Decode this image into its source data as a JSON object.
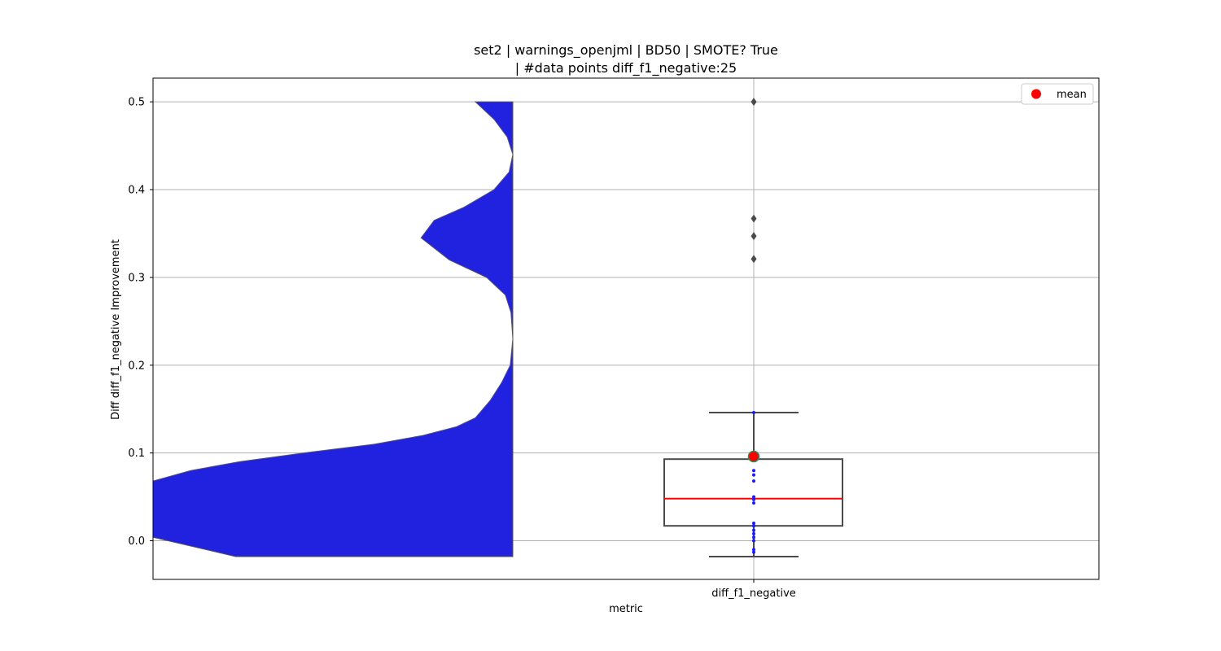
{
  "chart_data": {
    "type": "violin+box",
    "title_line1": "set2 | warnings_openjml | BD50 | SMOTE? True",
    "title_line2": "| #data points diff_f1_negative:25",
    "xlabel": "metric",
    "ylabel": "Diff diff_f1_negative Improvement",
    "categories": [
      "diff_f1_negative"
    ],
    "ylim": [
      -0.044,
      0.527
    ],
    "yticks": [
      0.0,
      0.1,
      0.2,
      0.3,
      0.4,
      0.5
    ],
    "ytick_labels": [
      "0.0",
      "0.1",
      "0.2",
      "0.3",
      "0.4",
      "0.5"
    ],
    "grid": true,
    "legend": {
      "placement": "top-right",
      "entries": [
        {
          "label": "mean",
          "color": "#ff0000"
        }
      ]
    },
    "box": {
      "whisker_low": -0.018,
      "q1": 0.017,
      "median": 0.048,
      "q3": 0.093,
      "whisker_high": 0.146,
      "mean": 0.096,
      "outliers": [
        0.321,
        0.347,
        0.367,
        0.5
      ]
    },
    "strip_points": [
      -0.013,
      -0.01,
      0.0,
      0.004,
      0.008,
      0.012,
      0.017,
      0.02,
      0.043,
      0.047,
      0.05,
      0.068,
      0.075,
      0.08,
      0.146
    ],
    "violin_density": [
      {
        "y": -0.018,
        "w": 0.74
      },
      {
        "y": 0.004,
        "w": 1.0
      },
      {
        "y": 0.02,
        "w": 1.0
      },
      {
        "y": 0.04,
        "w": 1.0
      },
      {
        "y": 0.068,
        "w": 1.0
      },
      {
        "y": 0.08,
        "w": 0.86
      },
      {
        "y": 0.09,
        "w": 0.73
      },
      {
        "y": 0.1,
        "w": 0.56
      },
      {
        "y": 0.11,
        "w": 0.37
      },
      {
        "y": 0.12,
        "w": 0.24
      },
      {
        "y": 0.13,
        "w": 0.15
      },
      {
        "y": 0.14,
        "w": 0.1
      },
      {
        "y": 0.16,
        "w": 0.06
      },
      {
        "y": 0.18,
        "w": 0.03
      },
      {
        "y": 0.2,
        "w": 0.007
      },
      {
        "y": 0.23,
        "w": 0.0
      },
      {
        "y": 0.26,
        "w": 0.005
      },
      {
        "y": 0.28,
        "w": 0.02
      },
      {
        "y": 0.3,
        "w": 0.07
      },
      {
        "y": 0.32,
        "w": 0.17
      },
      {
        "y": 0.345,
        "w": 0.245
      },
      {
        "y": 0.365,
        "w": 0.21
      },
      {
        "y": 0.38,
        "w": 0.13
      },
      {
        "y": 0.4,
        "w": 0.05
      },
      {
        "y": 0.42,
        "w": 0.01
      },
      {
        "y": 0.44,
        "w": 0.0
      },
      {
        "y": 0.46,
        "w": 0.015
      },
      {
        "y": 0.48,
        "w": 0.05
      },
      {
        "y": 0.5,
        "w": 0.1
      }
    ],
    "colors": {
      "violin_fill": "#2121e0",
      "violin_edge": "#555555",
      "box_edge": "#4a4a4a",
      "median": "#ff0000",
      "mean": "#ff0000",
      "mean_edge": "#2e8b57",
      "strip": "#1a1aff",
      "grid": "#b0b0b0",
      "outlier": "#4a4a4a"
    }
  }
}
